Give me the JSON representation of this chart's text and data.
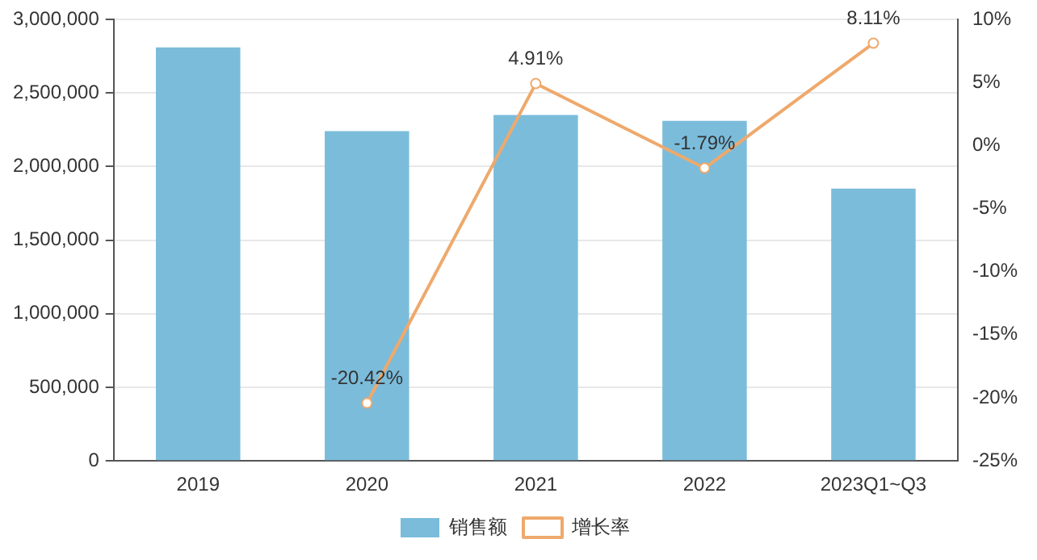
{
  "chart_data": {
    "type": "bar",
    "categories": [
      "2019",
      "2020",
      "2021",
      "2022",
      "2023Q1~Q3"
    ],
    "series": [
      {
        "name": "销售额",
        "color": "#7bbcdb",
        "values": [
          2810000,
          2240000,
          2350000,
          2310000,
          1850000
        ]
      },
      {
        "name": "增长率",
        "type": "line",
        "axis": "y2",
        "color": "#eea96c",
        "values": [
          null,
          -20.42,
          4.91,
          -1.79,
          8.11
        ],
        "value_labels": [
          null,
          "-20.42%",
          "4.91%",
          "-1.79%",
          "8.11%"
        ],
        "marker": "circle"
      }
    ],
    "ylim": [
      0,
      3000000
    ],
    "yticks": [
      {
        "value": 0,
        "label": "0"
      },
      {
        "value": 500000,
        "label": "500,000"
      },
      {
        "value": 1000000,
        "label": "1,000,000"
      },
      {
        "value": 1500000,
        "label": "1,500,000"
      },
      {
        "value": 2000000,
        "label": "2,000,000"
      },
      {
        "value": 2500000,
        "label": "2,500,000"
      },
      {
        "value": 3000000,
        "label": "3,000,000"
      }
    ],
    "y2lim": [
      -25,
      10
    ],
    "y2ticks": [
      {
        "value": -25,
        "label": "-25%"
      },
      {
        "value": -20,
        "label": "-20%"
      },
      {
        "value": -15,
        "label": "-15%"
      },
      {
        "value": -10,
        "label": "-10%"
      },
      {
        "value": -5,
        "label": "-5%"
      },
      {
        "value": 0,
        "label": "0%"
      },
      {
        "value": 5,
        "label": "5%"
      },
      {
        "value": 10,
        "label": "10%"
      }
    ],
    "grid": "y",
    "legend": "bottom"
  }
}
